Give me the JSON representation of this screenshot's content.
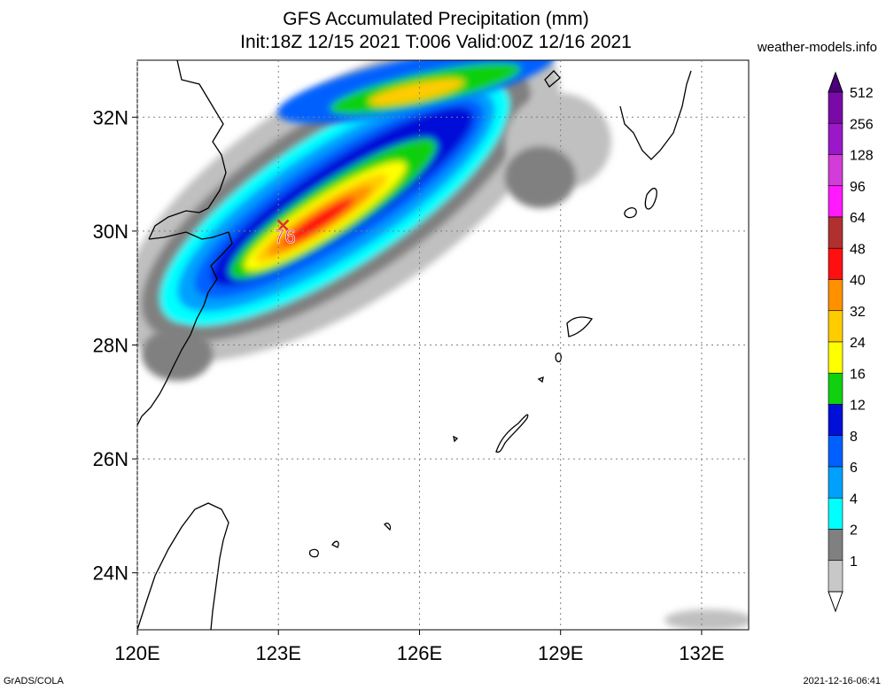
{
  "header": {
    "title_line1": "GFS Accumulated Precipitation (mm)",
    "title_line2": "Init:18Z 12/15 2021 T:006 Valid:00Z 12/16 2021",
    "site": "weather-models.info"
  },
  "map": {
    "lat_range": [
      23,
      33
    ],
    "lon_range": [
      120,
      133
    ],
    "lat_labels": [
      "32N",
      "30N",
      "28N",
      "26N",
      "24N"
    ],
    "lon_labels": [
      "120E",
      "123E",
      "126E",
      "129E",
      "132E"
    ],
    "max_marker": {
      "value": "76",
      "lat": 30.1,
      "lon": 123.1,
      "color": "#e03030"
    }
  },
  "colorbar": {
    "labels": [
      "512",
      "256",
      "128",
      "96",
      "64",
      "48",
      "40",
      "32",
      "24",
      "16",
      "12",
      "8",
      "6",
      "4",
      "2",
      "1"
    ],
    "colors": [
      "#7a0aa6",
      "#9a18c8",
      "#d23cd8",
      "#ff1aff",
      "#b03030",
      "#ff1010",
      "#ff9000",
      "#ffcc00",
      "#ffff00",
      "#10d010",
      "#0010d8",
      "#0060ff",
      "#00a0ff",
      "#00ffff",
      "#808080",
      "#c8c8c8"
    ]
  },
  "footer": {
    "left": "GrADS/COLA",
    "right": "2021-12-16-06:41"
  }
}
